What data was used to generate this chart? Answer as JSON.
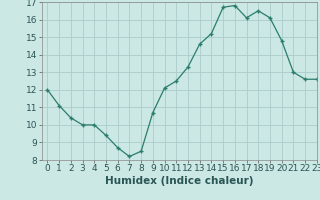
{
  "x": [
    0,
    1,
    2,
    3,
    4,
    5,
    6,
    7,
    8,
    9,
    10,
    11,
    12,
    13,
    14,
    15,
    16,
    17,
    18,
    19,
    20,
    21,
    22,
    23
  ],
  "y": [
    12.0,
    11.1,
    10.4,
    10.0,
    10.0,
    9.4,
    8.7,
    8.2,
    8.5,
    10.7,
    12.1,
    12.5,
    13.3,
    14.6,
    15.2,
    16.7,
    16.8,
    16.1,
    16.5,
    16.1,
    14.8,
    13.0,
    12.6,
    12.6
  ],
  "xlabel": "Humidex (Indice chaleur)",
  "ylim": [
    8,
    17
  ],
  "xlim": [
    -0.5,
    23
  ],
  "yticks": [
    8,
    9,
    10,
    11,
    12,
    13,
    14,
    15,
    16,
    17
  ],
  "xticks": [
    0,
    1,
    2,
    3,
    4,
    5,
    6,
    7,
    8,
    9,
    10,
    11,
    12,
    13,
    14,
    15,
    16,
    17,
    18,
    19,
    20,
    21,
    22,
    23
  ],
  "line_color": "#2a7d6d",
  "marker": "+",
  "bg_color": "#cce8e4",
  "grid_color": "#aacccc",
  "tick_label_fontsize": 6.5,
  "xlabel_fontsize": 7.5,
  "xlabel_fontweight": "bold"
}
